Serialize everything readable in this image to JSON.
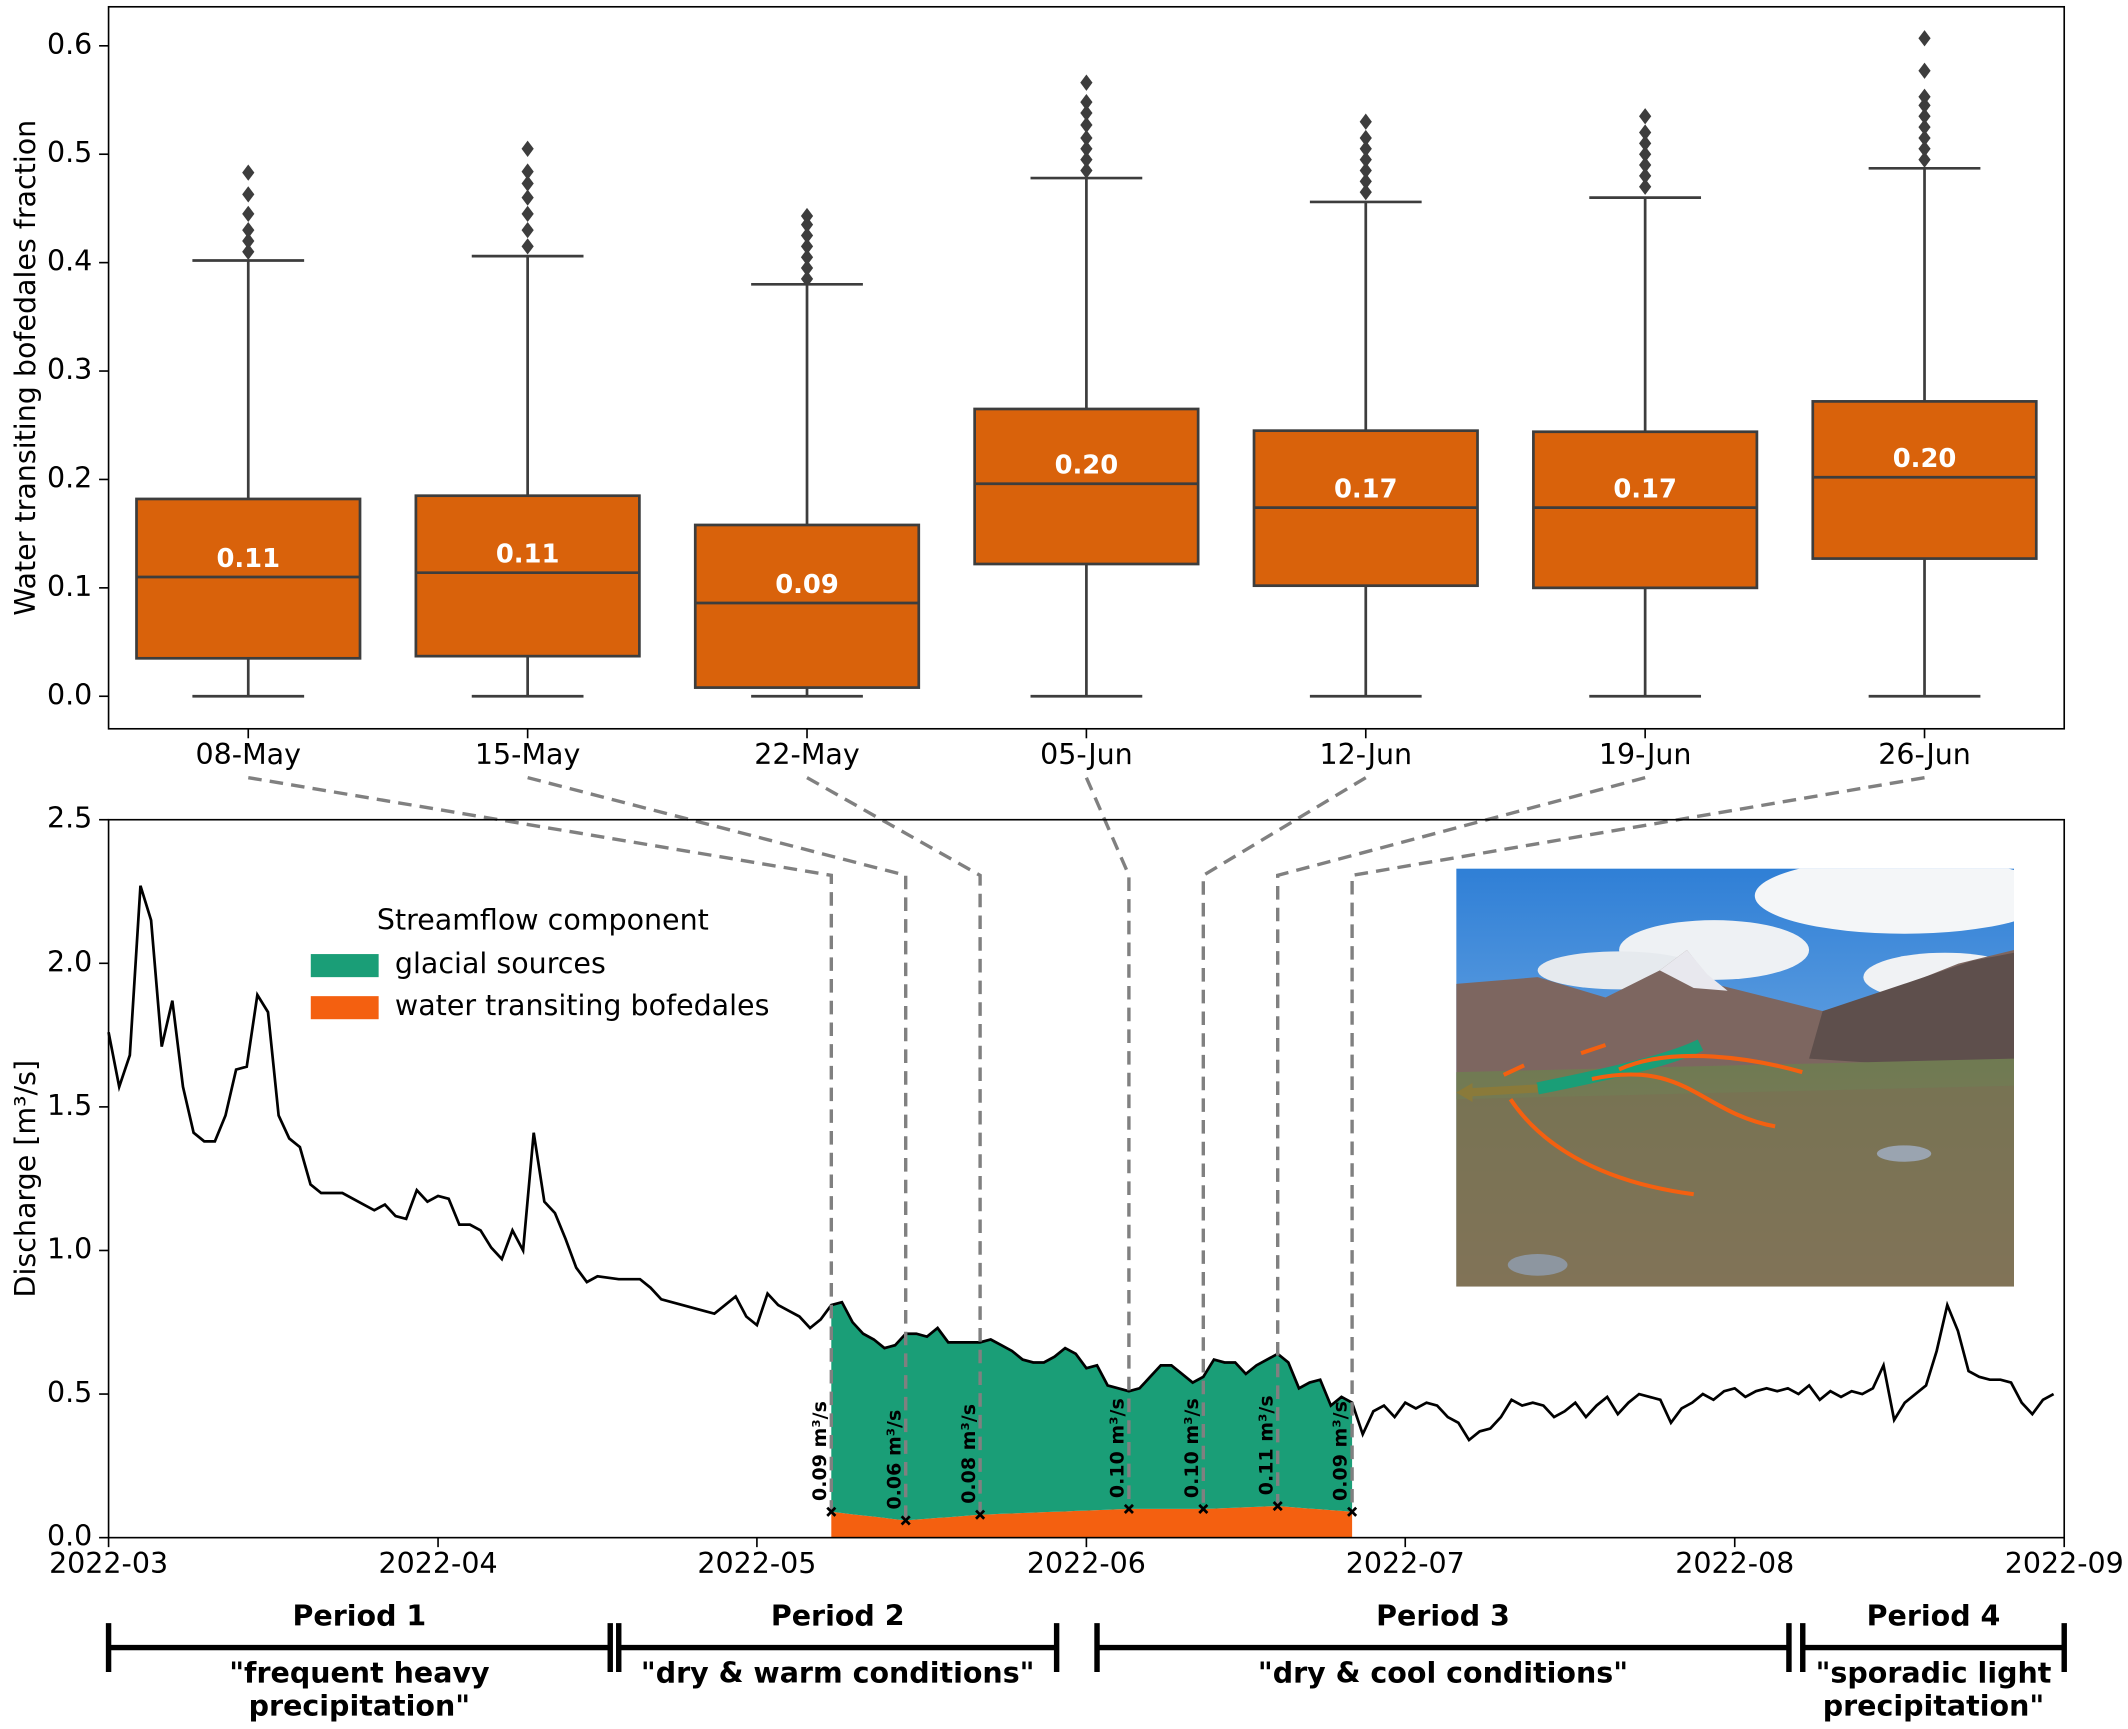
{
  "chart_data": [
    {
      "type": "box",
      "ylabel": "Water transiting bofedales fraction",
      "categories": [
        "08-May",
        "15-May",
        "22-May",
        "05-Jun",
        "12-Jun",
        "19-Jun",
        "26-Jun"
      ],
      "color": "#d9620b",
      "boxes": [
        {
          "min": 0,
          "q1": 0.035,
          "median": 0.11,
          "q3": 0.182,
          "max": 0.402,
          "outliers": [
            0.41,
            0.42,
            0.43,
            0.445,
            0.463,
            0.483
          ],
          "median_label": "0.11"
        },
        {
          "min": 0,
          "q1": 0.037,
          "median": 0.114,
          "q3": 0.185,
          "max": 0.406,
          "outliers": [
            0.415,
            0.43,
            0.445,
            0.46,
            0.473,
            0.484,
            0.505
          ],
          "median_label": "0.11"
        },
        {
          "min": 0,
          "q1": 0.008,
          "median": 0.086,
          "q3": 0.158,
          "max": 0.38,
          "outliers": [
            0.385,
            0.395,
            0.405,
            0.415,
            0.425,
            0.435,
            0.443
          ],
          "median_label": "0.09"
        },
        {
          "min": 0,
          "q1": 0.122,
          "median": 0.196,
          "q3": 0.265,
          "max": 0.478,
          "outliers": [
            0.485,
            0.495,
            0.505,
            0.515,
            0.527,
            0.538,
            0.548,
            0.566
          ],
          "median_label": "0.20"
        },
        {
          "min": 0,
          "q1": 0.102,
          "median": 0.174,
          "q3": 0.245,
          "max": 0.456,
          "outliers": [
            0.465,
            0.475,
            0.485,
            0.495,
            0.505,
            0.515,
            0.53
          ],
          "median_label": "0.17"
        },
        {
          "min": 0,
          "q1": 0.1,
          "median": 0.174,
          "q3": 0.244,
          "max": 0.46,
          "outliers": [
            0.47,
            0.48,
            0.49,
            0.5,
            0.51,
            0.52,
            0.535
          ],
          "median_label": "0.17"
        },
        {
          "min": 0,
          "q1": 0.127,
          "median": 0.202,
          "q3": 0.272,
          "max": 0.487,
          "outliers": [
            0.495,
            0.505,
            0.515,
            0.525,
            0.535,
            0.545,
            0.553,
            0.577,
            0.607
          ],
          "median_label": "0.20"
        }
      ],
      "ylim": [
        -0.03,
        0.636
      ],
      "yticks": [
        {
          "value": 0,
          "label": "0.0"
        },
        {
          "value": 0.1,
          "label": "0.1"
        },
        {
          "value": 0.2,
          "label": "0.2"
        },
        {
          "value": 0.3,
          "label": "0.3"
        },
        {
          "value": 0.4,
          "label": "0.4"
        },
        {
          "value": 0.5,
          "label": "0.5"
        },
        {
          "value": 0.6,
          "label": "0.6"
        }
      ]
    },
    {
      "type": "line",
      "ylabel": "Discharge [m³/s]",
      "xlim": [
        0,
        184
      ],
      "xticks": [
        {
          "value": 0,
          "label": "2022-03"
        },
        {
          "value": 31,
          "label": "2022-04"
        },
        {
          "value": 61,
          "label": "2022-05"
        },
        {
          "value": 92,
          "label": "2022-06"
        },
        {
          "value": 122,
          "label": "2022-07"
        },
        {
          "value": 153,
          "label": "2022-08"
        },
        {
          "value": 184,
          "label": "2022-09"
        }
      ],
      "ylim": [
        0,
        2.5
      ],
      "yticks": [
        {
          "value": 0,
          "label": "0.0"
        },
        {
          "value": 0.5,
          "label": "0.5"
        },
        {
          "value": 1,
          "label": "1.0"
        },
        {
          "value": 1.5,
          "label": "1.5"
        },
        {
          "value": 2,
          "label": "2.0"
        },
        {
          "value": 2.5,
          "label": "2.5"
        }
      ],
      "line": {
        "color": "#000000",
        "x": [
          0,
          1,
          2,
          3,
          4,
          5,
          6,
          7,
          8,
          9,
          10,
          11,
          12,
          13,
          14,
          15,
          16,
          17,
          18,
          19,
          20,
          21,
          22,
          24,
          25,
          26,
          27,
          28,
          29,
          30,
          31,
          32,
          33,
          34,
          35,
          36,
          37,
          38,
          39,
          40,
          41,
          42,
          43,
          44,
          45,
          46,
          48,
          50,
          51,
          52,
          54,
          56,
          57,
          58,
          59,
          60,
          61,
          62,
          63,
          64,
          65,
          66,
          67,
          68,
          69,
          70,
          71,
          72,
          73,
          74,
          75,
          76,
          77,
          78,
          79,
          80,
          81,
          82,
          83,
          84,
          85,
          86,
          87,
          88,
          89,
          90,
          91,
          92,
          93,
          94,
          95,
          96,
          97,
          98,
          99,
          100,
          101,
          102,
          103,
          104,
          105,
          106,
          107,
          108,
          109,
          110,
          111,
          112,
          113,
          114,
          115,
          116,
          117,
          118,
          119,
          120,
          121,
          122,
          123,
          124,
          125,
          126,
          127,
          128,
          129,
          130,
          131,
          132,
          133,
          134,
          135,
          136,
          137,
          138,
          139,
          140,
          141,
          142,
          143,
          144,
          145,
          146,
          147,
          148,
          149,
          150,
          151,
          152,
          153,
          154,
          155,
          156,
          157,
          158,
          159,
          160,
          161,
          162,
          163,
          164,
          165,
          166,
          167,
          168,
          169,
          170,
          171,
          172,
          173,
          174,
          175,
          176,
          177,
          178,
          179,
          180,
          181,
          182,
          183
        ],
        "values": [
          1.76,
          1.57,
          1.68,
          2.27,
          2.15,
          1.71,
          1.87,
          1.57,
          1.41,
          1.38,
          1.38,
          1.47,
          1.63,
          1.64,
          1.89,
          1.83,
          1.47,
          1.39,
          1.36,
          1.23,
          1.2,
          1.2,
          1.2,
          1.16,
          1.14,
          1.16,
          1.12,
          1.11,
          1.21,
          1.17,
          1.19,
          1.18,
          1.09,
          1.09,
          1.07,
          1.01,
          0.97,
          1.07,
          1.0,
          1.41,
          1.17,
          1.13,
          1.04,
          0.94,
          0.89,
          0.91,
          0.9,
          0.9,
          0.87,
          0.83,
          0.81,
          0.79,
          0.78,
          0.81,
          0.84,
          0.77,
          0.74,
          0.85,
          0.81,
          0.79,
          0.77,
          0.73,
          0.76,
          0.81,
          0.82,
          0.75,
          0.71,
          0.69,
          0.66,
          0.67,
          0.71,
          0.71,
          0.7,
          0.73,
          0.68,
          0.68,
          0.68,
          0.68,
          0.69,
          0.67,
          0.65,
          0.62,
          0.61,
          0.61,
          0.63,
          0.66,
          0.64,
          0.59,
          0.6,
          0.53,
          0.52,
          0.51,
          0.52,
          0.56,
          0.6,
          0.6,
          0.57,
          0.54,
          0.56,
          0.62,
          0.61,
          0.61,
          0.57,
          0.6,
          0.62,
          0.64,
          0.61,
          0.52,
          0.54,
          0.55,
          0.46,
          0.49,
          0.47,
          0.36,
          0.44,
          0.46,
          0.42,
          0.47,
          0.45,
          0.47,
          0.46,
          0.42,
          0.4,
          0.34,
          0.37,
          0.38,
          0.42,
          0.48,
          0.46,
          0.47,
          0.46,
          0.42,
          0.44,
          0.47,
          0.42,
          0.46,
          0.49,
          0.43,
          0.47,
          0.5,
          0.49,
          0.48,
          0.4,
          0.45,
          0.47,
          0.5,
          0.48,
          0.51,
          0.52,
          0.49,
          0.51,
          0.52,
          0.51,
          0.52,
          0.5,
          0.53,
          0.48,
          0.51,
          0.49,
          0.51,
          0.5,
          0.52,
          0.6,
          0.41,
          0.47,
          0.5,
          0.53,
          0.65,
          0.81,
          0.72,
          0.58,
          0.56,
          0.55,
          0.55,
          0.54,
          0.47,
          0.43,
          0.48,
          0.5
        ]
      },
      "legend_title": "Streamflow component",
      "area_x": [
        68,
        69,
        70,
        71,
        72,
        73,
        74,
        75,
        76,
        77,
        78,
        79,
        80,
        81,
        82,
        83,
        84,
        85,
        86,
        87,
        88,
        89,
        90,
        91,
        92,
        93,
        94,
        95,
        96,
        97,
        98,
        99,
        100,
        101,
        102,
        103,
        104,
        105,
        106,
        107,
        108,
        109,
        110,
        111,
        112,
        113,
        114,
        115,
        116,
        117
      ],
      "series": [
        {
          "name": "glacial sources",
          "color": "#1a9e77",
          "values": [
            0.72,
            0.734,
            0.669,
            0.633,
            0.617,
            0.591,
            0.606,
            0.65,
            0.647,
            0.634,
            0.661,
            0.609,
            0.606,
            0.603,
            0.6,
            0.609,
            0.587,
            0.566,
            0.534,
            0.523,
            0.521,
            0.54,
            0.569,
            0.547,
            0.496,
            0.504,
            0.433,
            0.421,
            0.41,
            0.42,
            0.46,
            0.5,
            0.5,
            0.47,
            0.44,
            0.46,
            0.519,
            0.507,
            0.506,
            0.464,
            0.493,
            0.511,
            0.53,
            0.503,
            0.416,
            0.439,
            0.451,
            0.364,
            0.397,
            0.38
          ]
        },
        {
          "name": "water transiting bofedales",
          "color": "#f46010",
          "values": [
            0.09,
            0.086,
            0.081,
            0.077,
            0.073,
            0.069,
            0.064,
            0.06,
            0.063,
            0.066,
            0.069,
            0.071,
            0.074,
            0.077,
            0.08,
            0.081,
            0.083,
            0.084,
            0.086,
            0.087,
            0.089,
            0.09,
            0.091,
            0.093,
            0.094,
            0.096,
            0.097,
            0.099,
            0.1,
            0.1,
            0.1,
            0.1,
            0.1,
            0.1,
            0.1,
            0.1,
            0.101,
            0.103,
            0.104,
            0.106,
            0.107,
            0.109,
            0.11,
            0.107,
            0.104,
            0.101,
            0.099,
            0.096,
            0.093,
            0.09
          ]
        }
      ],
      "markers": {
        "x": [
          68,
          75,
          82,
          96,
          103,
          110,
          117
        ],
        "values": [
          0.09,
          0.06,
          0.08,
          0.1,
          0.1,
          0.11,
          0.09
        ],
        "value_labels": [
          "0.09 m³/s",
          "0.06 m³/s",
          "0.08 m³/s",
          "0.10 m³/s",
          "0.10 m³/s",
          "0.11 m³/s",
          "0.09 m³/s"
        ]
      },
      "periods": [
        {
          "label": "Period 1",
          "start": 0,
          "end": 47.2,
          "description": [
            "\"frequent heavy",
            "precipitation\""
          ]
        },
        {
          "label": "Period 2",
          "start": 48,
          "end": 89.2,
          "description": [
            "\"dry & warm conditions\""
          ]
        },
        {
          "label": "Period 3",
          "start": 93,
          "end": 158.1,
          "description": [
            "\"dry & cool conditions\""
          ]
        },
        {
          "label": "Period 4",
          "start": 159.4,
          "end": 184,
          "description": [
            "\"sporadic light",
            "precipitation\""
          ]
        }
      ]
    }
  ]
}
